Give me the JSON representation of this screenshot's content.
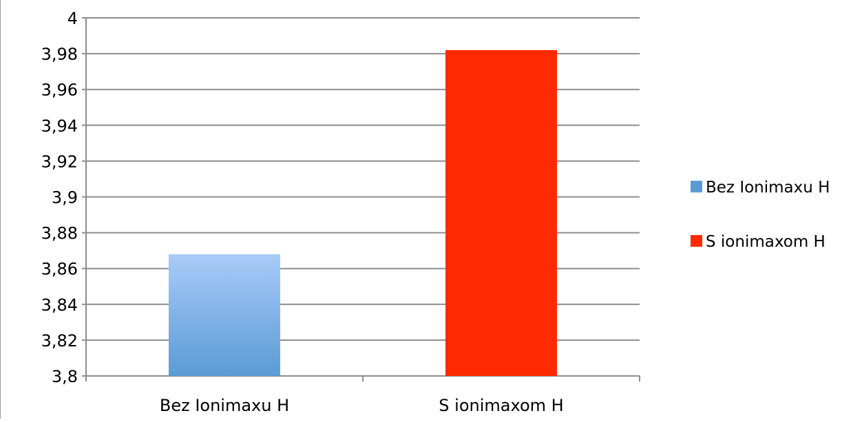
{
  "chart_data": {
    "type": "bar",
    "categories": [
      "Bez Ionimaxu H",
      "S ionimaxom H"
    ],
    "series": [
      {
        "name": "Bez Ionimaxu H",
        "category_index": 0,
        "value": 3.868,
        "color": "#5b9bd5",
        "color_light": "#a9cbf8"
      },
      {
        "name": "S ionimaxom H",
        "category_index": 1,
        "value": 3.982,
        "color": "#ff2a00",
        "color_light": "#ff2a00"
      }
    ],
    "ylim": [
      3.8,
      4.0
    ],
    "y_ticks": [
      "3,8",
      "3,82",
      "3,84",
      "3,86",
      "3,88",
      "3,9",
      "3,92",
      "3,94",
      "3,96",
      "3,98",
      "4"
    ],
    "grid": true,
    "legend_position": "right"
  }
}
